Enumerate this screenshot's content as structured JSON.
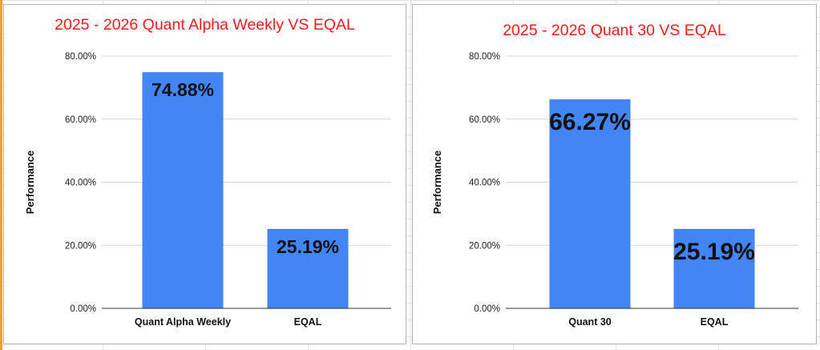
{
  "chart_data": [
    {
      "type": "bar",
      "title": "2025 - 2026 Quant Alpha Weekly VS EQAL",
      "ylabel": "Performance",
      "xlabel": "",
      "categories": [
        "Quant Alpha Weekly",
        "EQAL"
      ],
      "values": [
        74.88,
        25.19
      ],
      "data_labels": [
        "74.88%",
        "25.19%"
      ],
      "ylim": [
        0,
        80
      ],
      "yticks": [
        "0.00%",
        "20.00%",
        "40.00%",
        "60.00%",
        "80.00%"
      ],
      "grid": true,
      "legend": "none"
    },
    {
      "type": "bar",
      "title": "2025 - 2026 Quant 30 VS EQAL",
      "ylabel": "Performance",
      "xlabel": "",
      "categories": [
        "Quant 30",
        "EQAL"
      ],
      "values": [
        66.27,
        25.19
      ],
      "data_labels": [
        "66.27%",
        "25.19%"
      ],
      "ylim": [
        0,
        80
      ],
      "yticks": [
        "0.00%",
        "20.00%",
        "40.00%",
        "60.00%",
        "80.00%"
      ],
      "grid": true,
      "legend": "none"
    }
  ],
  "colors": {
    "bar": "#4285f4",
    "title": "#ff1a1a",
    "grid": "#d9d9d9",
    "axis": "#333333"
  }
}
